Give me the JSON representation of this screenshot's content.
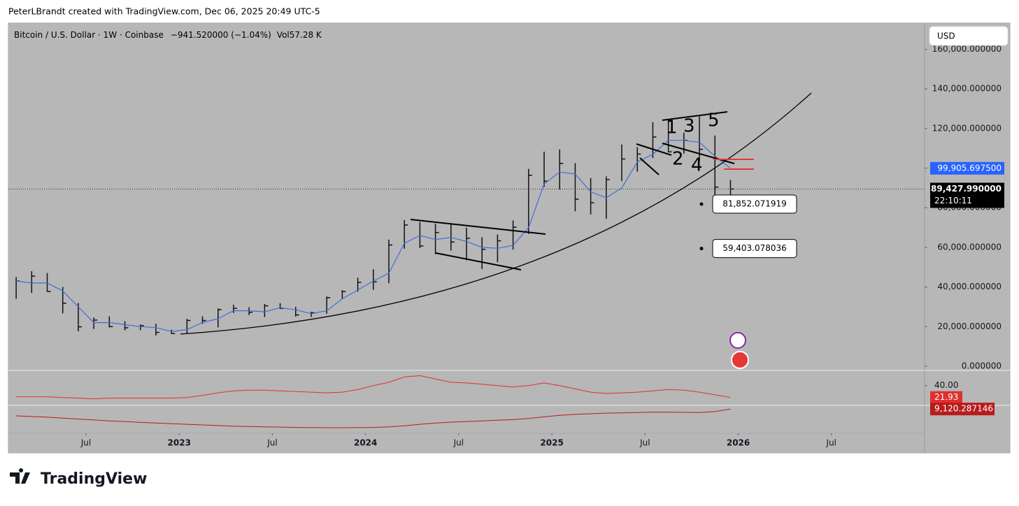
{
  "header": "PeterLBrandt created with TradingView.com, Dec 06, 2025 20:49 UTC-5",
  "logo": "TradingView",
  "chart_data": {
    "type": "ohlc-bar",
    "symbol": "Bitcoin / U.S. Dollar · 1W · Coinbase",
    "change": "−941.520000 (−1.04%)",
    "volume_label": "Vol",
    "volume": "57.28 K",
    "currency": "USD",
    "x": [
      "2022-02",
      "2022-03",
      "2022-04",
      "2022-05",
      "2022-06",
      "2022-07",
      "2022-08",
      "2022-09",
      "2022-10",
      "2022-11",
      "2022-12",
      "2023-01",
      "2023-02",
      "2023-03",
      "2023-04",
      "2023-05",
      "2023-06",
      "2023-07",
      "2023-08",
      "2023-09",
      "2023-10",
      "2023-11",
      "2023-12",
      "2024-01",
      "2024-02",
      "2024-03",
      "2024-04",
      "2024-05",
      "2024-06",
      "2024-07",
      "2024-08",
      "2024-09",
      "2024-10",
      "2024-11",
      "2024-12",
      "2025-01",
      "2025-02",
      "2025-03",
      "2025-04",
      "2025-05",
      "2025-06",
      "2025-07",
      "2025-08",
      "2025-09",
      "2025-10",
      "2025-11",
      "2025-12"
    ],
    "high": [
      45000,
      48000,
      47000,
      40000,
      31900,
      24600,
      25200,
      22700,
      21000,
      21400,
      18400,
      23900,
      25200,
      29200,
      31000,
      29800,
      31400,
      31800,
      30000,
      27500,
      35200,
      38400,
      44700,
      48900,
      63900,
      73800,
      72800,
      71900,
      71900,
      70000,
      65100,
      66500,
      73600,
      99600,
      108300,
      109400,
      102500,
      95000,
      95800,
      111900,
      110600,
      123200,
      124500,
      117900,
      126200,
      116400,
      94000
    ],
    "low": [
      34000,
      37000,
      37600,
      26700,
      17600,
      18800,
      19600,
      18100,
      18200,
      15500,
      16300,
      16500,
      21400,
      19600,
      26900,
      25800,
      24800,
      28900,
      25100,
      24900,
      26500,
      34100,
      37600,
      38500,
      41900,
      59300,
      59600,
      56600,
      58400,
      53500,
      49000,
      52500,
      58900,
      66800,
      90500,
      89200,
      78200,
      76600,
      74400,
      93400,
      98200,
      105100,
      108000,
      107300,
      103500,
      80600,
      83800
    ],
    "close": [
      43000,
      45500,
      37700,
      31800,
      19900,
      23300,
      20000,
      19400,
      20500,
      17100,
      16500,
      23100,
      23100,
      28500,
      29200,
      27200,
      30500,
      29200,
      25900,
      27000,
      34600,
      37700,
      42300,
      42600,
      61200,
      71300,
      60700,
      67500,
      62700,
      64600,
      59000,
      63300,
      70200,
      96400,
      93400,
      102400,
      84300,
      82500,
      94200,
      104600,
      107100,
      115700,
      108200,
      114000,
      109500,
      90400,
      89427.99
    ],
    "bar_color": "#111111",
    "ma": {
      "color": "#3f6fd8",
      "values": [
        43000,
        42000,
        42000,
        38000,
        30000,
        22000,
        22000,
        21000,
        20000,
        19500,
        17500,
        18500,
        22000,
        24000,
        28000,
        28000,
        27500,
        29500,
        28500,
        26500,
        28000,
        34000,
        38500,
        43000,
        47000,
        62000,
        66000,
        64000,
        65000,
        63000,
        60000,
        59500,
        61000,
        70000,
        92000,
        98000,
        97000,
        88000,
        85000,
        90000,
        103000,
        107000,
        114000,
        114000,
        113000,
        106000,
        99905.6975
      ]
    },
    "xlim": [
      "2022-02",
      "2026-12"
    ],
    "xticks": [
      {
        "value": "2022-07",
        "label": "Jul"
      },
      {
        "value": "2023-01",
        "label": "2023"
      },
      {
        "value": "2023-07",
        "label": "Jul"
      },
      {
        "value": "2024-01",
        "label": "2024"
      },
      {
        "value": "2024-07",
        "label": "Jul"
      },
      {
        "value": "2025-01",
        "label": "2025"
      },
      {
        "value": "2025-07",
        "label": "Jul"
      },
      {
        "value": "2026-01",
        "label": "2026"
      },
      {
        "value": "2026-07",
        "label": "Jul"
      }
    ],
    "ylim": [
      -2111,
      173200
    ],
    "yticks": [
      {
        "value": 0,
        "label": "0.000000"
      },
      {
        "value": 20000,
        "label": "20,000.000000"
      },
      {
        "value": 40000,
        "label": "40,000.000000"
      },
      {
        "value": 60000,
        "label": "60,000.000000"
      },
      {
        "value": 80000,
        "label": "80,000.000000"
      },
      {
        "value": 100000,
        "label": "100,000.000000"
      },
      {
        "value": 120000,
        "label": "120,000.000000"
      },
      {
        "value": 140000,
        "label": "140,000.000000"
      },
      {
        "value": 160000,
        "label": "160,000.000000"
      }
    ],
    "last_price": {
      "value": 89427.99,
      "label": "89,427.990000",
      "color": "#000000"
    },
    "countdown": "22:10:11",
    "ma_price": {
      "value": 99905.6975,
      "label": "99,905.697500",
      "color": "#2962ff"
    },
    "price_labels": [
      {
        "value": 81852.071919,
        "label": "81,852.071919"
      },
      {
        "value": 59403.078036,
        "label": "59,403.078036"
      }
    ],
    "annotations": [
      "1",
      "3",
      "5",
      "2",
      "4"
    ],
    "pane1": {
      "color": "#e0302e",
      "ylim": [
        10,
        63
      ],
      "yticks": [
        {
          "value": 40,
          "label": "40.00"
        }
      ],
      "last_label": {
        "value": 21.93,
        "label": "21.93"
      },
      "values": [
        23,
        23,
        23,
        22,
        21,
        20,
        21,
        21,
        21,
        21,
        21,
        22,
        25,
        29,
        32,
        33,
        33,
        32,
        31,
        30,
        29,
        30,
        34,
        40,
        45,
        53,
        55,
        50,
        45,
        44,
        42,
        40,
        38,
        40,
        44,
        40,
        35,
        30,
        28,
        29,
        30,
        32,
        34,
        33,
        30,
        26,
        21.93
      ]
    },
    "pane2": {
      "color": "#b71c1c",
      "ylim": [
        -30000,
        15000
      ],
      "last_label": {
        "value": 9120.287146,
        "label": "9,120.287146"
      },
      "values": [
        -1880,
        -3000,
        -4000,
        -5500,
        -7000,
        -8500,
        -10000,
        -11000,
        -12500,
        -13500,
        -14500,
        -15500,
        -16500,
        -17500,
        -18500,
        -19000,
        -19500,
        -20000,
        -20500,
        -20800,
        -21000,
        -21000,
        -20800,
        -20500,
        -19500,
        -18000,
        -15500,
        -13500,
        -12000,
        -11000,
        -10000,
        -9000,
        -8000,
        -6000,
        -3500,
        -1000,
        500,
        1500,
        2500,
        3000,
        3500,
        4000,
        4000,
        3700,
        3500,
        5000,
        9120.287146
      ]
    }
  }
}
